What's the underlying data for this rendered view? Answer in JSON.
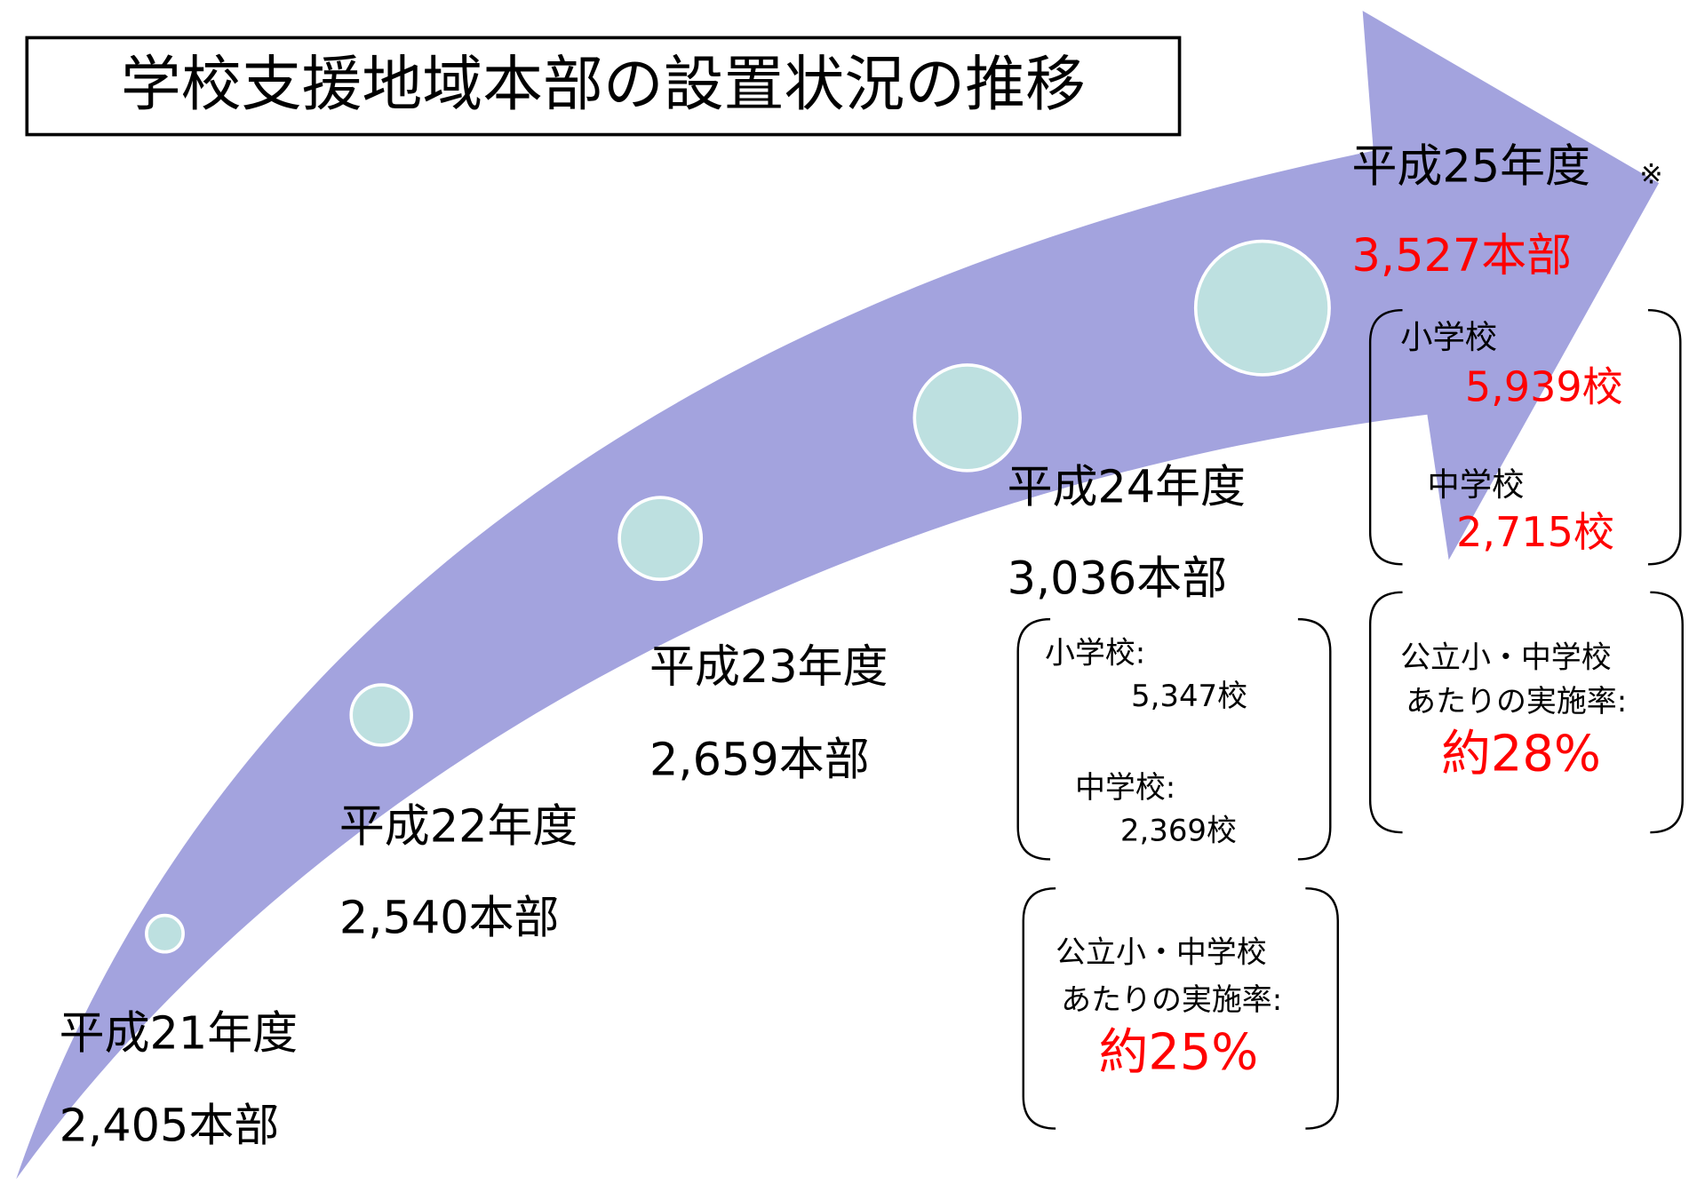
{
  "title": "学校支援地域本部の設置状況の推移",
  "years": [
    {
      "year": "平成21年度",
      "count": "2,405本部"
    },
    {
      "year": "平成22年度",
      "count": "2,540本部"
    },
    {
      "year": "平成23年度",
      "count": "2,659本部"
    },
    {
      "year": "平成24年度",
      "count": "3,036本部"
    },
    {
      "year": "平成25年度",
      "note": "※",
      "count": "3,527本部"
    }
  ],
  "breakdowns": [
    {
      "elementary_label": "小学校:",
      "elementary": "5,347校",
      "junior_label": "中学校:",
      "junior": "2,369校",
      "rate_label": [
        "公立小・中学校",
        "あたりの実施率:"
      ],
      "rate": "約25%"
    },
    {
      "elementary_label": "小学校",
      "elementary": "5,939校",
      "junior_label": "中学校",
      "junior": "2,715校",
      "rate_label": [
        "公立小・中学校",
        "あたりの実施率:"
      ],
      "rate": "約28%"
    }
  ]
}
